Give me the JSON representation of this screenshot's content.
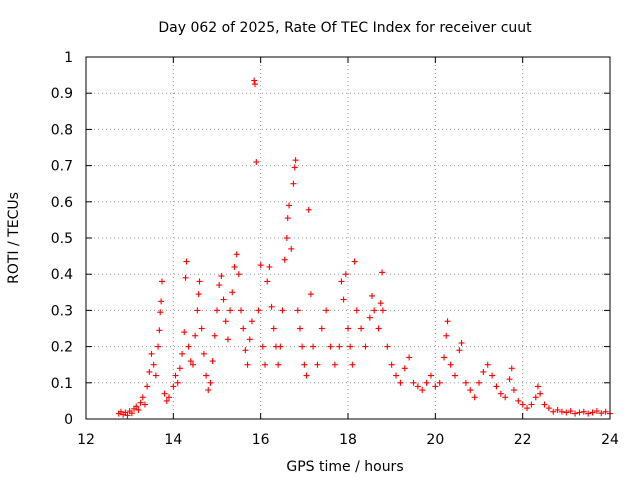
{
  "chart_data": {
    "type": "scatter",
    "title": "Day 062 of 2025, Rate Of TEC Index for receiver cuut",
    "xlabel": "GPS time / hours",
    "ylabel": "ROTI / TECUs",
    "xlim": [
      12,
      24
    ],
    "ylim": [
      0,
      1
    ],
    "xticks": [
      "12",
      "14",
      "16",
      "18",
      "20",
      "22",
      "24"
    ],
    "yticks": [
      "0",
      "0.1",
      "0.2",
      "0.3",
      "0.4",
      "0.5",
      "0.6",
      "0.7",
      "0.8",
      "0.9",
      "1"
    ],
    "grid": true,
    "marker": "plus",
    "color": "#ff0000",
    "series": [
      {
        "values": [
          [
            12.75,
            0.015
          ],
          [
            12.8,
            0.02
          ],
          [
            12.85,
            0.012
          ],
          [
            12.9,
            0.018
          ],
          [
            12.95,
            0.01
          ],
          [
            13.0,
            0.022
          ],
          [
            13.05,
            0.016
          ],
          [
            13.1,
            0.028
          ],
          [
            13.15,
            0.035
          ],
          [
            13.2,
            0.025
          ],
          [
            13.25,
            0.045
          ],
          [
            13.3,
            0.06
          ],
          [
            13.35,
            0.04
          ],
          [
            13.4,
            0.09
          ],
          [
            13.45,
            0.13
          ],
          [
            13.5,
            0.18
          ],
          [
            13.55,
            0.15
          ],
          [
            13.6,
            0.12
          ],
          [
            13.65,
            0.2
          ],
          [
            13.68,
            0.245
          ],
          [
            13.7,
            0.295
          ],
          [
            13.72,
            0.325
          ],
          [
            13.74,
            0.38
          ],
          [
            13.8,
            0.07
          ],
          [
            13.85,
            0.05
          ],
          [
            13.9,
            0.06
          ],
          [
            14.0,
            0.09
          ],
          [
            14.05,
            0.12
          ],
          [
            14.1,
            0.1
          ],
          [
            14.15,
            0.14
          ],
          [
            14.2,
            0.18
          ],
          [
            14.25,
            0.24
          ],
          [
            14.28,
            0.39
          ],
          [
            14.3,
            0.435
          ],
          [
            14.35,
            0.2
          ],
          [
            14.4,
            0.16
          ],
          [
            14.45,
            0.15
          ],
          [
            14.5,
            0.23
          ],
          [
            14.55,
            0.3
          ],
          [
            14.58,
            0.345
          ],
          [
            14.6,
            0.38
          ],
          [
            14.65,
            0.25
          ],
          [
            14.7,
            0.18
          ],
          [
            14.75,
            0.12
          ],
          [
            14.8,
            0.08
          ],
          [
            14.85,
            0.1
          ],
          [
            14.9,
            0.16
          ],
          [
            14.95,
            0.23
          ],
          [
            15.0,
            0.3
          ],
          [
            15.05,
            0.37
          ],
          [
            15.1,
            0.395
          ],
          [
            15.15,
            0.33
          ],
          [
            15.2,
            0.27
          ],
          [
            15.25,
            0.22
          ],
          [
            15.3,
            0.3
          ],
          [
            15.35,
            0.35
          ],
          [
            15.4,
            0.42
          ],
          [
            15.45,
            0.455
          ],
          [
            15.5,
            0.4
          ],
          [
            15.55,
            0.3
          ],
          [
            15.6,
            0.25
          ],
          [
            15.65,
            0.19
          ],
          [
            15.7,
            0.15
          ],
          [
            15.75,
            0.22
          ],
          [
            15.8,
            0.27
          ],
          [
            15.85,
            0.935
          ],
          [
            15.87,
            0.925
          ],
          [
            15.9,
            0.71
          ],
          [
            15.95,
            0.3
          ],
          [
            16.0,
            0.425
          ],
          [
            16.05,
            0.2
          ],
          [
            16.1,
            0.15
          ],
          [
            16.15,
            0.38
          ],
          [
            16.2,
            0.42
          ],
          [
            16.25,
            0.31
          ],
          [
            16.3,
            0.25
          ],
          [
            16.35,
            0.2
          ],
          [
            16.4,
            0.15
          ],
          [
            16.45,
            0.2
          ],
          [
            16.5,
            0.3
          ],
          [
            16.55,
            0.44
          ],
          [
            16.6,
            0.5
          ],
          [
            16.62,
            0.555
          ],
          [
            16.65,
            0.59
          ],
          [
            16.7,
            0.47
          ],
          [
            16.75,
            0.65
          ],
          [
            16.78,
            0.695
          ],
          [
            16.8,
            0.715
          ],
          [
            16.85,
            0.3
          ],
          [
            16.9,
            0.25
          ],
          [
            16.95,
            0.2
          ],
          [
            17.0,
            0.15
          ],
          [
            17.05,
            0.12
          ],
          [
            17.1,
            0.578
          ],
          [
            17.15,
            0.345
          ],
          [
            17.2,
            0.2
          ],
          [
            17.3,
            0.15
          ],
          [
            17.4,
            0.25
          ],
          [
            17.5,
            0.3
          ],
          [
            17.6,
            0.2
          ],
          [
            17.7,
            0.15
          ],
          [
            17.8,
            0.2
          ],
          [
            17.85,
            0.38
          ],
          [
            17.9,
            0.33
          ],
          [
            17.95,
            0.4
          ],
          [
            18.0,
            0.25
          ],
          [
            18.05,
            0.2
          ],
          [
            18.1,
            0.15
          ],
          [
            18.15,
            0.435
          ],
          [
            18.2,
            0.3
          ],
          [
            18.3,
            0.25
          ],
          [
            18.4,
            0.2
          ],
          [
            18.5,
            0.28
          ],
          [
            18.55,
            0.34
          ],
          [
            18.6,
            0.3
          ],
          [
            18.7,
            0.25
          ],
          [
            18.75,
            0.32
          ],
          [
            18.78,
            0.405
          ],
          [
            18.8,
            0.3
          ],
          [
            18.9,
            0.2
          ],
          [
            19.0,
            0.15
          ],
          [
            19.1,
            0.12
          ],
          [
            19.2,
            0.1
          ],
          [
            19.3,
            0.14
          ],
          [
            19.4,
            0.17
          ],
          [
            19.5,
            0.1
          ],
          [
            19.6,
            0.09
          ],
          [
            19.7,
            0.08
          ],
          [
            19.8,
            0.1
          ],
          [
            19.9,
            0.12
          ],
          [
            20.0,
            0.09
          ],
          [
            20.1,
            0.1
          ],
          [
            20.2,
            0.17
          ],
          [
            20.25,
            0.23
          ],
          [
            20.28,
            0.27
          ],
          [
            20.35,
            0.15
          ],
          [
            20.45,
            0.12
          ],
          [
            20.55,
            0.19
          ],
          [
            20.6,
            0.21
          ],
          [
            20.7,
            0.1
          ],
          [
            20.8,
            0.08
          ],
          [
            20.9,
            0.06
          ],
          [
            21.0,
            0.1
          ],
          [
            21.1,
            0.13
          ],
          [
            21.2,
            0.15
          ],
          [
            21.3,
            0.12
          ],
          [
            21.4,
            0.09
          ],
          [
            21.5,
            0.07
          ],
          [
            21.6,
            0.06
          ],
          [
            21.7,
            0.11
          ],
          [
            21.75,
            0.14
          ],
          [
            21.8,
            0.08
          ],
          [
            21.9,
            0.05
          ],
          [
            22.0,
            0.04
          ],
          [
            22.1,
            0.03
          ],
          [
            22.2,
            0.04
          ],
          [
            22.3,
            0.06
          ],
          [
            22.35,
            0.09
          ],
          [
            22.4,
            0.07
          ],
          [
            22.5,
            0.04
          ],
          [
            22.6,
            0.03
          ],
          [
            22.7,
            0.02
          ],
          [
            22.8,
            0.025
          ],
          [
            22.9,
            0.02
          ],
          [
            23.0,
            0.018
          ],
          [
            23.1,
            0.022
          ],
          [
            23.2,
            0.015
          ],
          [
            23.3,
            0.018
          ],
          [
            23.4,
            0.02
          ],
          [
            23.5,
            0.015
          ],
          [
            23.6,
            0.018
          ],
          [
            23.7,
            0.022
          ],
          [
            23.8,
            0.016
          ],
          [
            23.9,
            0.02
          ],
          [
            24.0,
            0.015
          ]
        ]
      }
    ]
  }
}
